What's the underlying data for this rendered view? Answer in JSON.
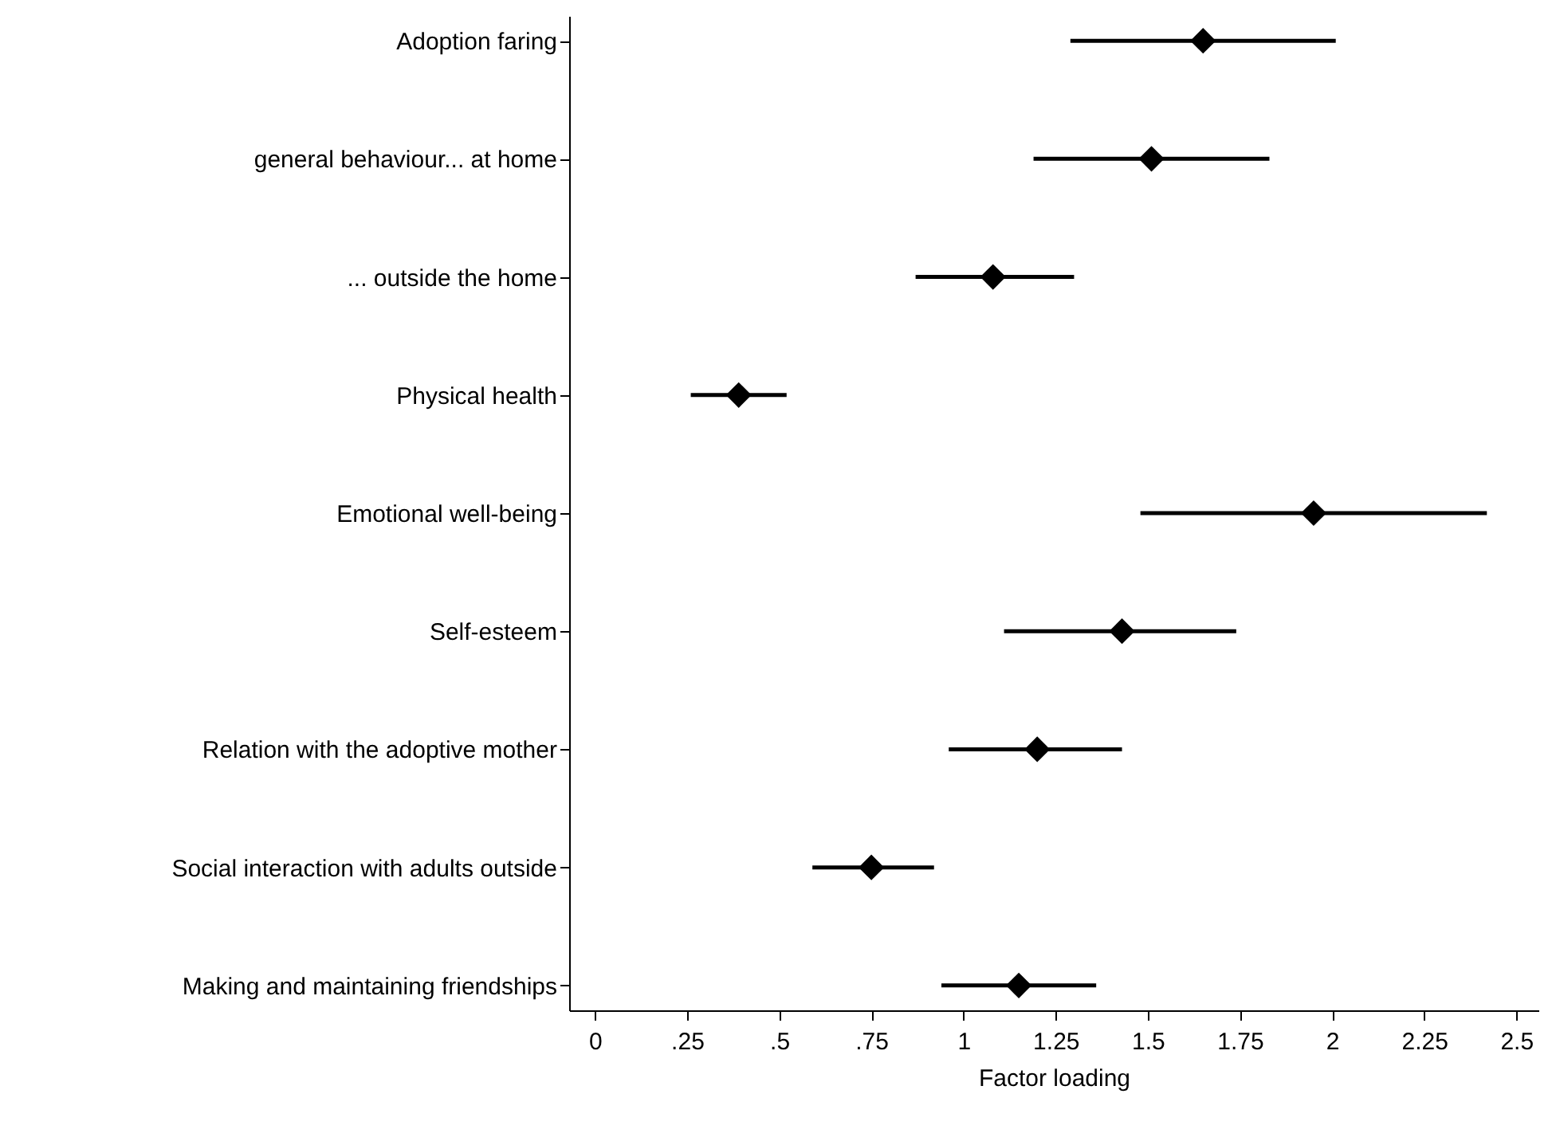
{
  "chart_data": {
    "type": "scatter",
    "orientation": "horizontal",
    "xlabel": "Factor loading",
    "categories": [
      "Adoption faring",
      "general behaviour... at home",
      "... outside the home",
      "Physical health",
      "Emotional well-being",
      "Self-esteem",
      "Relation with the adoptive mother",
      "Social interaction with adults outside",
      "Making and maintaining friendships"
    ],
    "values": [
      1.65,
      1.51,
      1.08,
      0.39,
      1.95,
      1.43,
      1.2,
      0.75,
      1.15
    ],
    "errors": [
      [
        1.29,
        2.01
      ],
      [
        1.19,
        1.83
      ],
      [
        0.87,
        1.3
      ],
      [
        0.26,
        0.52
      ],
      [
        1.48,
        2.42
      ],
      [
        1.11,
        1.74
      ],
      [
        0.96,
        1.43
      ],
      [
        0.59,
        0.92
      ],
      [
        0.94,
        1.36
      ]
    ],
    "color": "#000000",
    "marker": "diamond",
    "xlim": [
      -0.07,
      2.56
    ],
    "xticks": [
      0,
      {
        "value": 0.25,
        "label": ".25"
      },
      {
        "value": 0.5,
        "label": ".5"
      },
      {
        "value": 0.75,
        "label": ".75"
      },
      1,
      1.25,
      1.5,
      1.75,
      2,
      2.25,
      2.5
    ]
  }
}
